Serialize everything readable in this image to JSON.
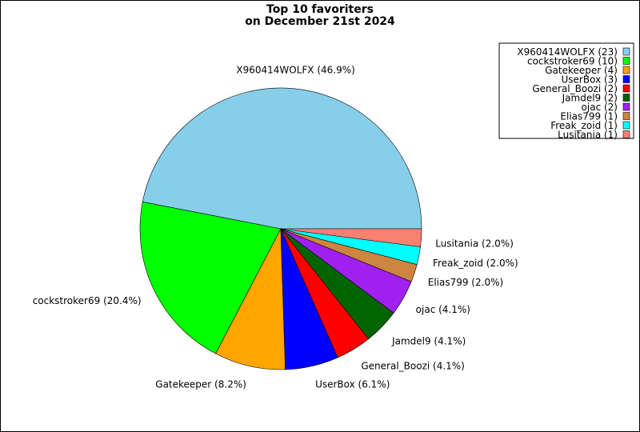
{
  "chart_data": {
    "type": "pie",
    "title": [
      "Top 10 favoriters",
      "on December 21st 2024"
    ],
    "slices": [
      {
        "name": "X960414WOLFX",
        "value": 23,
        "label": "X960414WOLFX (46.9%)",
        "legend": "X960414WOLFX (23)",
        "color": "#87CEEB"
      },
      {
        "name": "cockstroker69",
        "value": 10,
        "label": "cockstroker69 (20.4%)",
        "legend": "cockstroker69 (10)",
        "color": "#00FF00"
      },
      {
        "name": "Gatekeeper",
        "value": 4,
        "label": "Gatekeeper (8.2%)",
        "legend": "Gatekeeper (4)",
        "color": "#FFA500"
      },
      {
        "name": "UserBox",
        "value": 3,
        "label": "UserBox (6.1%)",
        "legend": "UserBox (3)",
        "color": "#0000FF"
      },
      {
        "name": "General_Boozi",
        "value": 2,
        "label": "General_Boozi (4.1%)",
        "legend": "General_Boozi (2)",
        "color": "#FF0000"
      },
      {
        "name": "Jamdel9",
        "value": 2,
        "label": "Jamdel9 (4.1%)",
        "legend": "Jamdel9 (2)",
        "color": "#006400"
      },
      {
        "name": "ojac",
        "value": 2,
        "label": "ojac (4.1%)",
        "legend": "ojac (2)",
        "color": "#A020F0"
      },
      {
        "name": "Elias799",
        "value": 1,
        "label": "Elias799 (2.0%)",
        "legend": "Elias799 (1)",
        "color": "#CD853F"
      },
      {
        "name": "Freak_zoid",
        "value": 1,
        "label": "Freak_zoid (2.0%)",
        "legend": "Freak_zoid (1)",
        "color": "#00FFFF"
      },
      {
        "name": "Lusitania",
        "value": 1,
        "label": "Lusitania (2.0%)",
        "legend": "Lusitania (1)",
        "color": "#FA8072"
      }
    ],
    "start_angle_deg": 0,
    "direction": "counterclockwise",
    "legend_placement": "top-right"
  }
}
